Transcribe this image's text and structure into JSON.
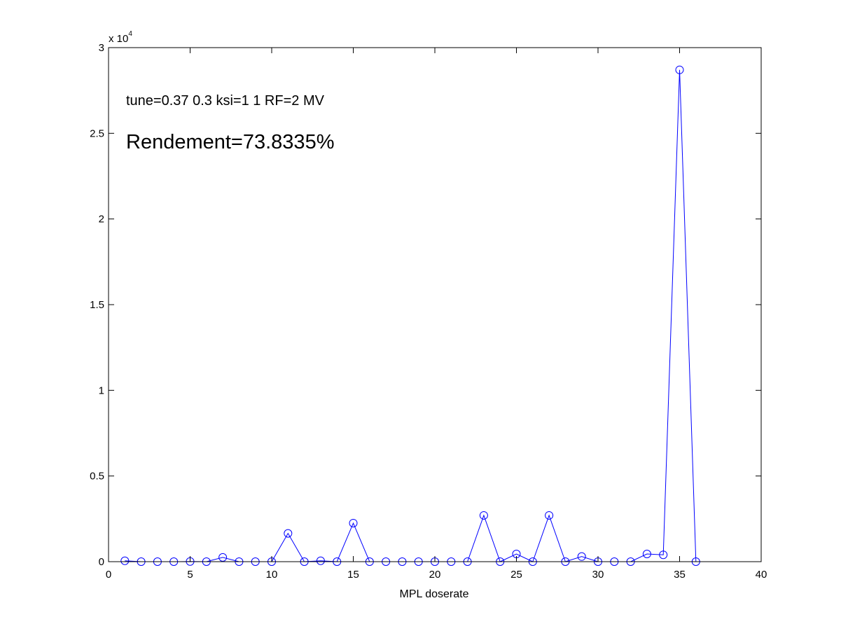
{
  "chart_data": {
    "type": "line",
    "xlabel": "MPL doserate",
    "ylabel": "",
    "xlim": [
      0,
      40
    ],
    "ylim": [
      0,
      30000
    ],
    "x_ticks": [
      "0",
      "5",
      "10",
      "15",
      "20",
      "25",
      "30",
      "35",
      "40"
    ],
    "y_ticks": [
      "0",
      "0.5",
      "1",
      "1.5",
      "2",
      "2.5",
      "3"
    ],
    "y_exponent_base": "x 10",
    "y_exponent_power": "4",
    "grid": false,
    "series": [
      {
        "color": "#0000ff",
        "marker": "circle",
        "x": [
          1,
          2,
          3,
          4,
          5,
          6,
          7,
          8,
          9,
          10,
          11,
          12,
          13,
          14,
          15,
          16,
          17,
          18,
          19,
          20,
          21,
          22,
          23,
          24,
          25,
          26,
          27,
          28,
          29,
          30,
          31,
          32,
          33,
          34,
          35,
          36
        ],
        "y": [
          50,
          0,
          0,
          0,
          10,
          0,
          250,
          0,
          0,
          0,
          1650,
          0,
          50,
          0,
          2250,
          0,
          0,
          0,
          0,
          0,
          0,
          0,
          2700,
          0,
          450,
          0,
          2700,
          0,
          300,
          0,
          0,
          0,
          450,
          400,
          28700,
          0
        ]
      }
    ],
    "annotations": [
      {
        "text": "tune=0.37 0.3  ksi=1 1 RF=2 MV"
      },
      {
        "text": "Rendement=73.8335%"
      }
    ]
  }
}
